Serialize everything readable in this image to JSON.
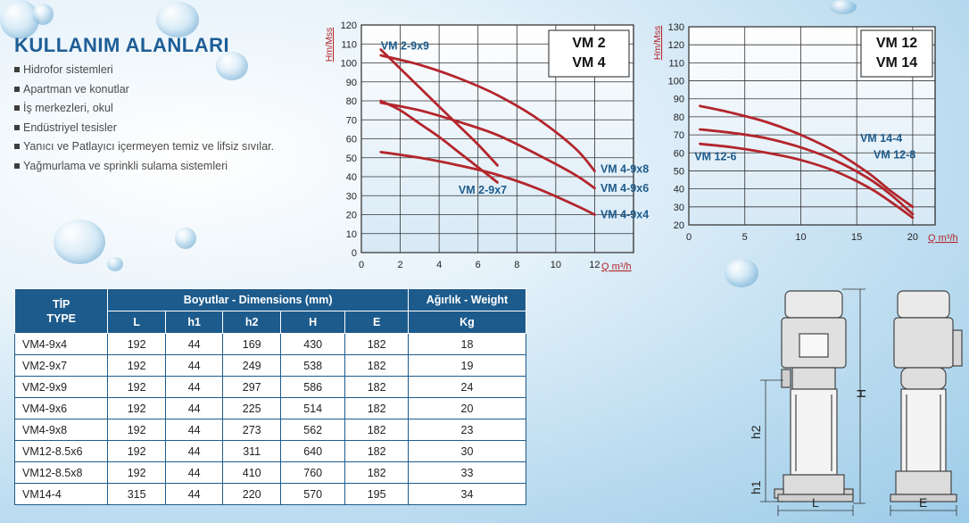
{
  "uses": {
    "title": "KULLANIM ALANLARI",
    "items": [
      "Hidrofor sistemleri",
      "Apartman ve konutlar",
      "İş merkezleri, okul",
      "Endüstriyel tesisler",
      "Yanıcı ve Patlayıcı içermeyen temiz ve lifsiz sıvılar.",
      "Yağmurlama ve sprinkli sulama sistemleri"
    ]
  },
  "chart_data": [
    {
      "type": "line",
      "title": "VM 2\nVM 4",
      "title_lines": [
        "VM 2",
        "VM 4"
      ],
      "xlabel": "Q m³/h",
      "ylabel": "Hm/Mss",
      "xlim": [
        0,
        14
      ],
      "ylim": [
        0,
        120
      ],
      "xticks": [
        0,
        2,
        4,
        6,
        8,
        10,
        12
      ],
      "yticks": [
        0,
        10,
        20,
        30,
        40,
        50,
        60,
        70,
        80,
        90,
        100,
        110,
        120
      ],
      "grid": true,
      "series": [
        {
          "name": "VM 2-9x9",
          "x": [
            1,
            2,
            3,
            4,
            5,
            6,
            7
          ],
          "y": [
            107,
            97,
            87,
            77,
            67,
            57,
            46
          ]
        },
        {
          "name": "VM 2-9x7",
          "x": [
            1,
            2,
            3,
            4,
            5,
            6,
            7
          ],
          "y": [
            80,
            75,
            68,
            61,
            53,
            45,
            37
          ]
        },
        {
          "name": "VM 4-9x8",
          "x": [
            1,
            3,
            5,
            7,
            9,
            11,
            12
          ],
          "y": [
            104,
            99,
            92,
            83,
            71,
            55,
            43
          ]
        },
        {
          "name": "VM 4-9x6",
          "x": [
            1,
            3,
            5,
            7,
            9,
            11,
            12
          ],
          "y": [
            79,
            75,
            69,
            62,
            52,
            41,
            34
          ]
        },
        {
          "name": "VM 4-9x4",
          "x": [
            1,
            3,
            5,
            7,
            9,
            11,
            12
          ],
          "y": [
            53,
            50,
            46,
            41,
            34,
            25,
            20
          ]
        }
      ],
      "annotations": [
        {
          "text": "VM 2-9x9",
          "x": 1,
          "y": 109
        },
        {
          "text": "VM 2-9x7",
          "x": 5,
          "y": 33
        },
        {
          "text": "VM 4-9x8",
          "x": 12.3,
          "y": 44
        },
        {
          "text": "VM 4-9x6",
          "x": 12.3,
          "y": 34
        },
        {
          "text": "VM 4-9x4",
          "x": 12.3,
          "y": 20
        }
      ]
    },
    {
      "type": "line",
      "title": "VM 12\nVM 14",
      "title_lines": [
        "VM 12",
        "VM 14"
      ],
      "xlabel": "Q m³/h",
      "ylabel": "Hm/Mss",
      "xlim": [
        0,
        22
      ],
      "ylim": [
        20,
        130
      ],
      "xticks": [
        0,
        5,
        10,
        15,
        20
      ],
      "yticks": [
        20,
        30,
        40,
        50,
        60,
        70,
        80,
        90,
        100,
        110,
        120,
        130
      ],
      "grid": true,
      "series": [
        {
          "name": "VM 14-4",
          "x": [
            1,
            4,
            7,
            10,
            13,
            16,
            18,
            20
          ],
          "y": [
            86,
            82,
            77,
            70,
            61,
            49,
            39,
            30
          ]
        },
        {
          "name": "VM 12-8",
          "x": [
            1,
            4,
            7,
            10,
            13,
            16,
            18,
            20
          ],
          "y": [
            73,
            71,
            68,
            63,
            56,
            46,
            37,
            26
          ]
        },
        {
          "name": "VM 12-6",
          "x": [
            1,
            4,
            7,
            10,
            13,
            16,
            18,
            20
          ],
          "y": [
            65,
            63,
            60,
            56,
            50,
            41,
            33,
            24
          ]
        }
      ],
      "annotations": [
        {
          "text": "VM 14-4",
          "x": 15.3,
          "y": 68
        },
        {
          "text": "VM 12-8",
          "x": 16.5,
          "y": 59
        },
        {
          "text": "VM 12-6",
          "x": 0.5,
          "y": 58
        }
      ]
    }
  ],
  "table": {
    "tip_label": "TİP",
    "type_label": "TYPE",
    "dimensions_label": "Boyutlar -  Dimensions (mm)",
    "weight_label": "Ağırlık - Weight",
    "columns": [
      "L",
      "h1",
      "h2",
      "H",
      "E"
    ],
    "weight_unit": "Kg",
    "rows": [
      {
        "tip": "VM4-9x4",
        "L": "192",
        "h1": "44",
        "h2": "169",
        "H": "430",
        "E": "182",
        "kg": "18"
      },
      {
        "tip": "VM2-9x7",
        "L": "192",
        "h1": "44",
        "h2": "249",
        "H": "538",
        "E": "182",
        "kg": "19"
      },
      {
        "tip": "VM2-9x9",
        "L": "192",
        "h1": "44",
        "h2": "297",
        "H": "586",
        "E": "182",
        "kg": "24"
      },
      {
        "tip": "VM4-9x6",
        "L": "192",
        "h1": "44",
        "h2": "225",
        "H": "514",
        "E": "182",
        "kg": "20"
      },
      {
        "tip": "VM4-9x8",
        "L": "192",
        "h1": "44",
        "h2": "273",
        "H": "562",
        "E": "182",
        "kg": "23"
      },
      {
        "tip": "VM12-8.5x6",
        "L": "192",
        "h1": "44",
        "h2": "311",
        "H": "640",
        "E": "182",
        "kg": "30"
      },
      {
        "tip": "VM12-8.5x8",
        "L": "192",
        "h1": "44",
        "h2": "410",
        "H": "760",
        "E": "182",
        "kg": "33"
      },
      {
        "tip": "VM14-4",
        "L": "315",
        "h1": "44",
        "h2": "220",
        "H": "570",
        "E": "195",
        "kg": "34"
      }
    ]
  },
  "drawing": {
    "labels": {
      "H": "H",
      "h2": "h2",
      "h1": "h1",
      "L": "L",
      "E": "E"
    }
  },
  "colors": {
    "curve": "#b3262c",
    "label": "#1d5b8c",
    "header": "#1d5b8c",
    "title": "#1e5e96"
  }
}
